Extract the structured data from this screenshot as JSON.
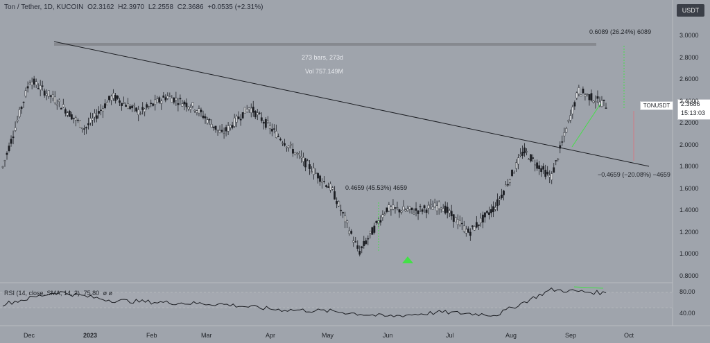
{
  "header": {
    "symbol": "Ton / Tether, 1D, KUCOIN",
    "o_label": "O",
    "o_value": "2.3162",
    "h_label": "H",
    "h_value": "2.3970",
    "l_label": "L",
    "l_value": "2.2558",
    "c_label": "C",
    "c_value": "2.3686",
    "change": "+0.0535 (+2.31%)"
  },
  "currency_button": "USDT",
  "price_axis": [
    "3.0000",
    "2.8000",
    "2.6000",
    "2.4000",
    "2.2000",
    "2.0000",
    "1.8000",
    "1.6000",
    "1.4000",
    "1.2000",
    "1.0000",
    "0.8000"
  ],
  "rsi_axis": [
    "80.00",
    "40.00"
  ],
  "time_axis": [
    "Dec",
    "2023",
    "Feb",
    "Mar",
    "Apr",
    "May",
    "Jun",
    "Jul",
    "Aug",
    "Sep",
    "Oct"
  ],
  "last_price": {
    "symbol_tag": "TONUSDT",
    "price": "2.3686",
    "countdown": "15:13:03"
  },
  "annotations": {
    "range_top": "0.6089 (26.24%) 6089",
    "bars_range": "273 bars, 273d",
    "volume": "Vol 757.149M",
    "bounce": "0.4659 (45.53%) 4659",
    "drop": "−0.4659 (−20.08%) −4659"
  },
  "rsi": {
    "label": "RSI (14, close, SMA, 14, 2)",
    "value": "75.80",
    "extra": "ø  ø"
  },
  "colors": {
    "background": "#9fa4ac",
    "candles": "#1b1d22",
    "trendline": "#1b1d22",
    "green": "#43e047",
    "red": "#d07a84",
    "range_band": "#8b8e95"
  },
  "chart_data": {
    "type": "candlestick",
    "y_axis_range": [
      0.8,
      3.0
    ],
    "rsi_axis_range": [
      20,
      90
    ],
    "price_series": [
      {
        "x": "Dec",
        "y": 1.8
      },
      {
        "x": "Dec 20",
        "y": 2.6
      },
      {
        "x": "2023",
        "y": 2.4
      },
      {
        "x": "Jan 10",
        "y": 2.15
      },
      {
        "x": "Feb",
        "y": 2.45
      },
      {
        "x": "Feb 15",
        "y": 2.3
      },
      {
        "x": "Mar",
        "y": 2.45
      },
      {
        "x": "Mar 15",
        "y": 2.35
      },
      {
        "x": "Apr",
        "y": 2.1
      },
      {
        "x": "Apr 15",
        "y": 2.35
      },
      {
        "x": "May",
        "y": 2.1
      },
      {
        "x": "May 15",
        "y": 1.85
      },
      {
        "x": "Jun",
        "y": 1.6
      },
      {
        "x": "Jun 7",
        "y": 1.02
      },
      {
        "x": "Jun 15",
        "y": 1.42
      },
      {
        "x": "Jul",
        "y": 1.4
      },
      {
        "x": "Jul 15",
        "y": 1.45
      },
      {
        "x": "Aug",
        "y": 1.2
      },
      {
        "x": "Aug 15",
        "y": 1.45
      },
      {
        "x": "Sep",
        "y": 1.95
      },
      {
        "x": "Sep 10",
        "y": 1.7
      },
      {
        "x": "Sep 15",
        "y": 2.5
      },
      {
        "x": "Sep 18",
        "y": 2.3686
      }
    ],
    "rsi_series": [
      {
        "x": "Dec",
        "y": 55
      },
      {
        "x": "Dec 20",
        "y": 78
      },
      {
        "x": "2023",
        "y": 62
      },
      {
        "x": "Feb",
        "y": 58
      },
      {
        "x": "Mar",
        "y": 55
      },
      {
        "x": "Apr",
        "y": 45
      },
      {
        "x": "May",
        "y": 42
      },
      {
        "x": "Jun",
        "y": 32
      },
      {
        "x": "Jul",
        "y": 40
      },
      {
        "x": "Aug",
        "y": 35
      },
      {
        "x": "Sep",
        "y": 82
      },
      {
        "x": "Sep 18",
        "y": 75.8
      }
    ]
  }
}
